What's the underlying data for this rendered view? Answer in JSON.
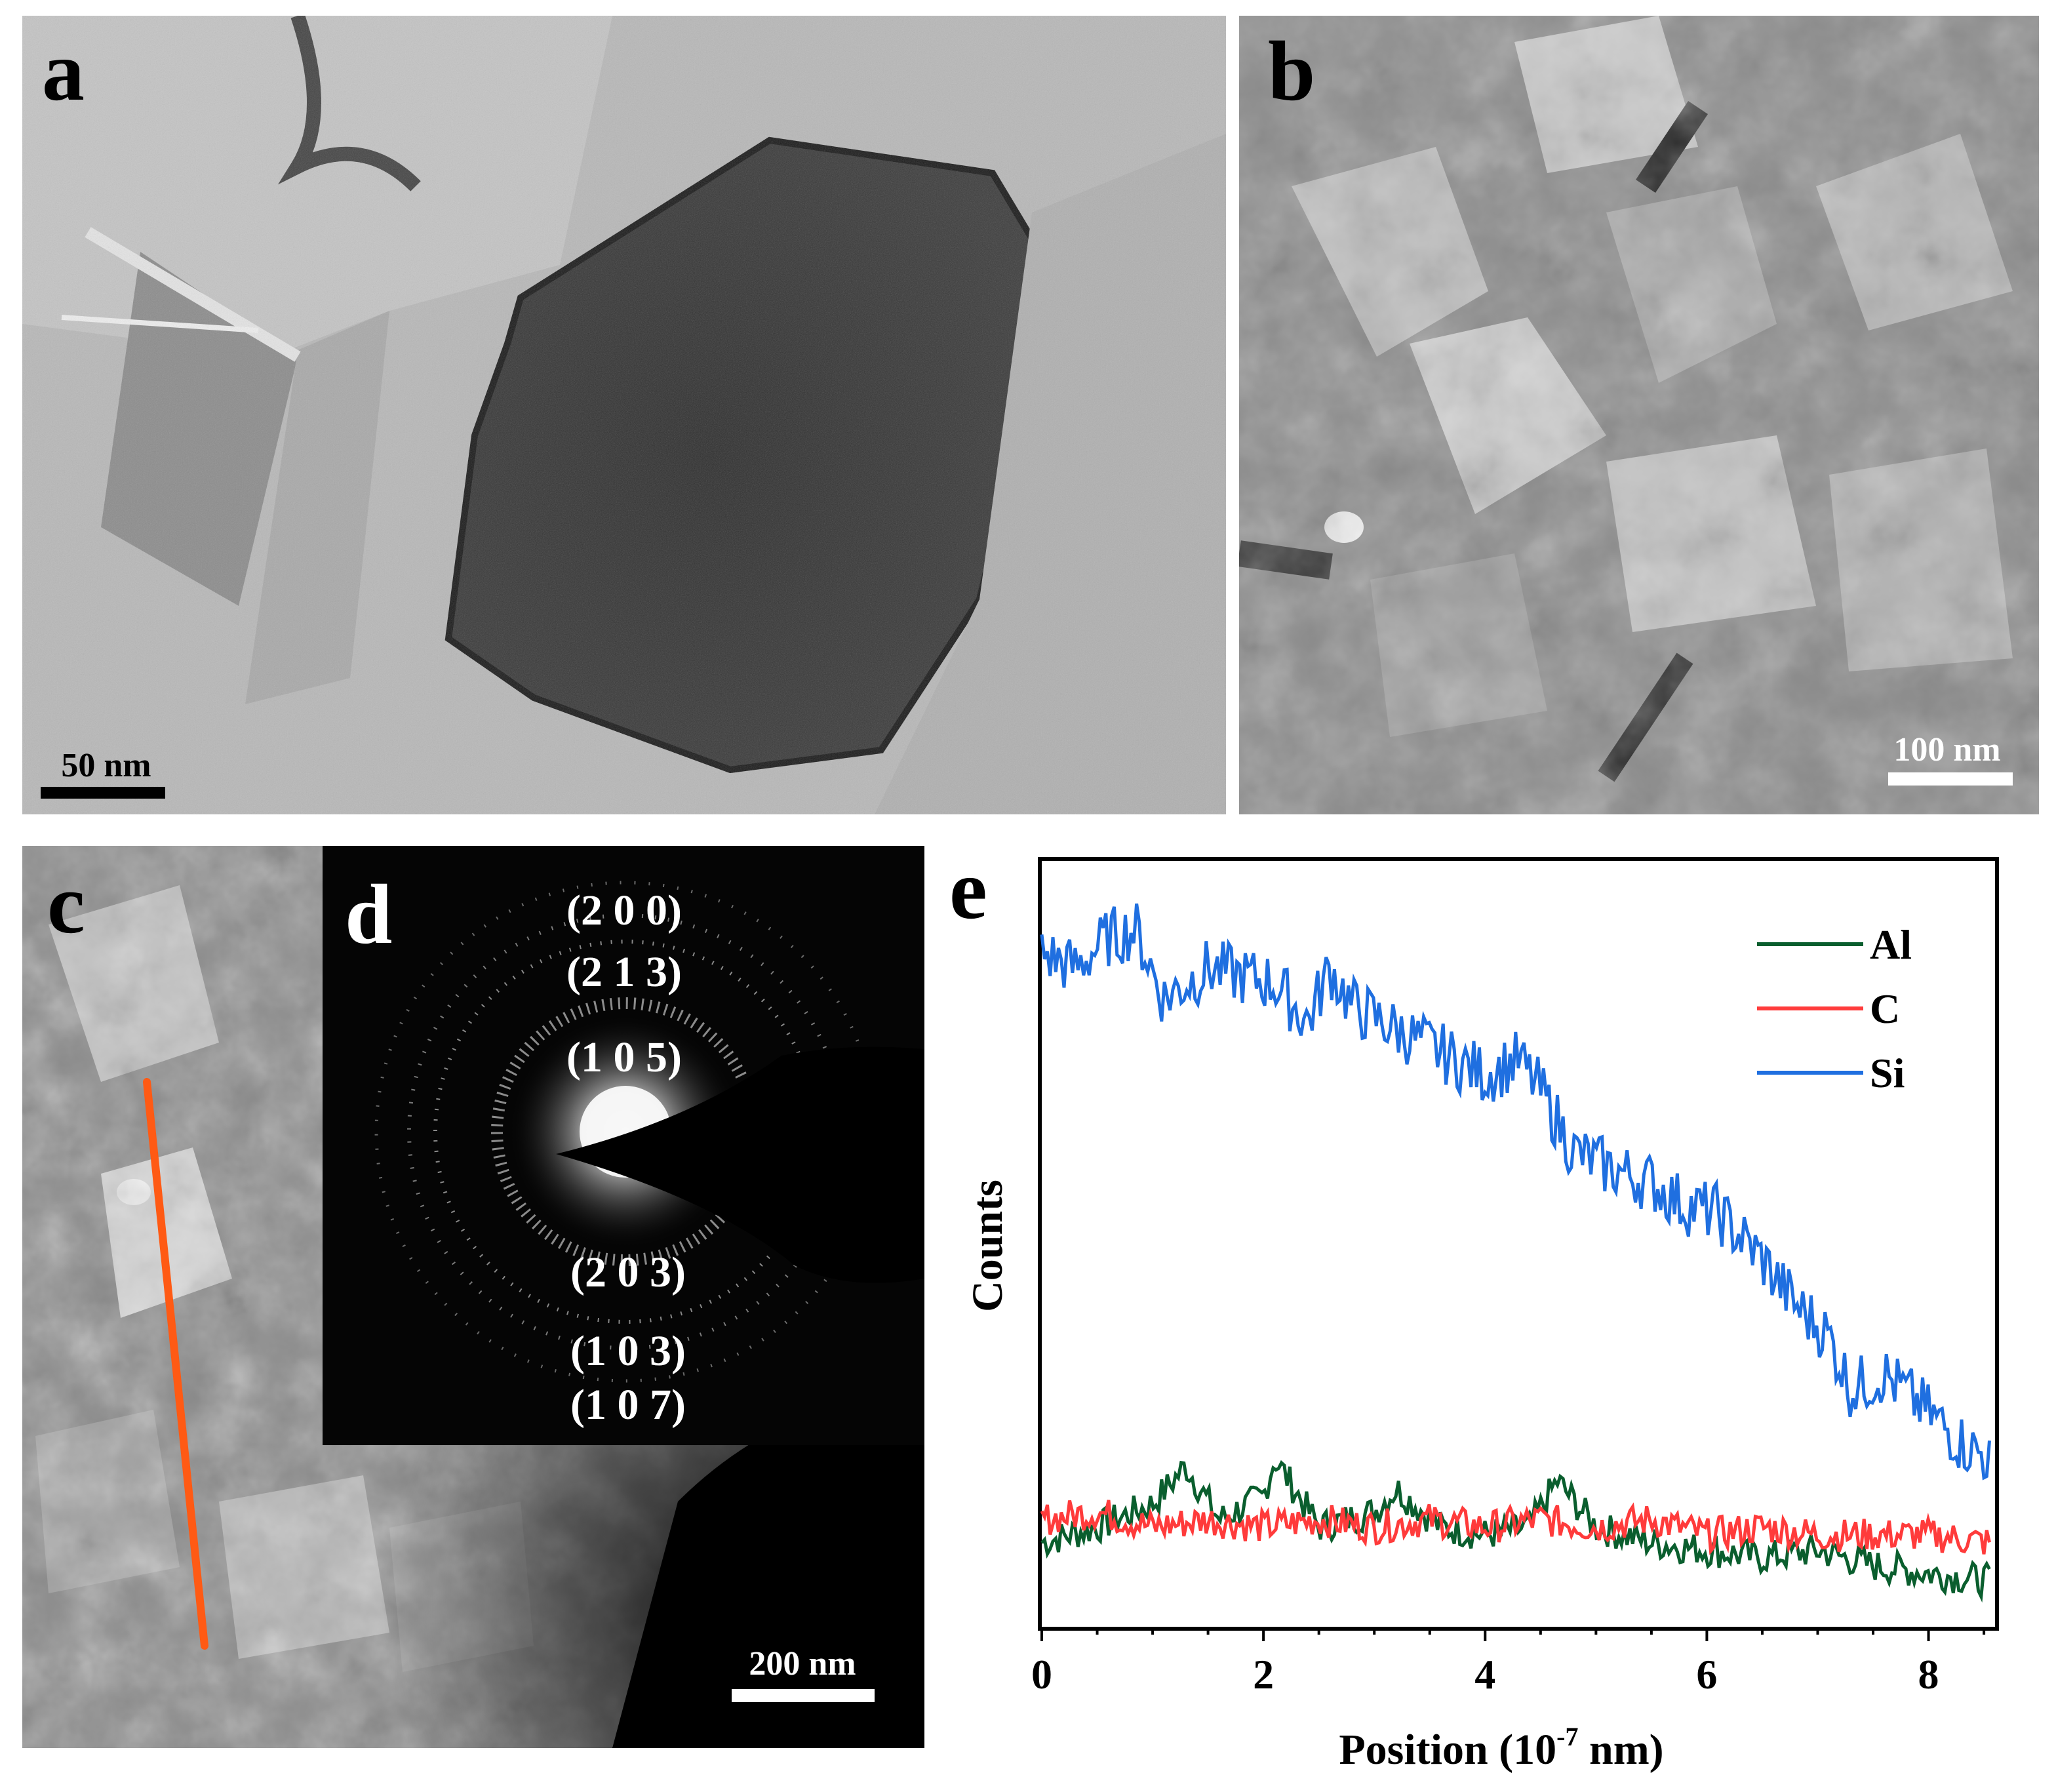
{
  "panels": {
    "a": {
      "label": "a",
      "scale_bar": "50 nm",
      "description": "bright-field TEM micrograph"
    },
    "b": {
      "label": "b",
      "scale_bar": "100 nm"
    },
    "c": {
      "label": "c",
      "scale_bar": "200 nm"
    },
    "d": {
      "label": "d",
      "rings": [
        "(2 0 0)",
        "(2 1 3)",
        "(1 0 5)",
        "(2 0 3)",
        "(1 0 3)",
        "(1 0 7)"
      ]
    },
    "e": {
      "label": "e"
    }
  },
  "colors": {
    "Al": "#0a5e2e",
    "C": "#ff3b3b",
    "Si": "#1f6fe0",
    "line_scan": "#ff5a14"
  },
  "chart_data": {
    "type": "line",
    "xlabel_main": "Position (10",
    "xlabel_exp": "-7",
    "xlabel_tail": " nm)",
    "ylabel": "Counts",
    "xlim": [
      0,
      8.6
    ],
    "ylim": [
      0,
      100
    ],
    "xticks": [
      0,
      2,
      4,
      6,
      8
    ],
    "xtick_labels": [
      "0",
      "2",
      "4",
      "6",
      "8"
    ],
    "legend_position": "top-right",
    "series": [
      {
        "name": "Al",
        "x": [
          0,
          0.5,
          1.0,
          1.3,
          1.6,
          2.0,
          2.1,
          2.5,
          3.0,
          3.2,
          3.6,
          4.0,
          4.4,
          4.65,
          5.0,
          5.5,
          6.0,
          6.5,
          7.0,
          7.5,
          8.0,
          8.55
        ],
        "y": [
          11,
          13,
          16,
          21,
          14,
          17,
          22,
          13,
          15,
          18,
          13,
          12,
          13,
          19,
          13,
          11,
          10,
          9,
          10,
          8,
          7,
          6
        ]
      },
      {
        "name": "C",
        "x": [
          0,
          0.5,
          1.0,
          1.5,
          2.0,
          2.5,
          3.0,
          3.5,
          4.0,
          4.5,
          5.0,
          5.5,
          6.0,
          6.5,
          7.0,
          7.5,
          8.0,
          8.55
        ],
        "y": [
          14,
          15,
          13,
          14,
          13,
          14,
          13,
          14,
          13,
          14,
          13,
          14,
          12,
          13,
          12,
          12,
          12,
          11
        ]
      },
      {
        "name": "Si",
        "x": [
          0,
          0.3,
          0.6,
          0.85,
          1.1,
          1.5,
          1.8,
          2.1,
          2.4,
          2.6,
          2.8,
          3.2,
          3.6,
          4.0,
          4.3,
          4.5,
          4.8,
          5.1,
          5.5,
          5.8,
          6.1,
          6.5,
          6.8,
          7.1,
          7.3,
          7.6,
          8.0,
          8.3,
          8.55
        ],
        "y": [
          88,
          86,
          90,
          91,
          82,
          86,
          85,
          84,
          79,
          86,
          81,
          78,
          75,
          72,
          74,
          70,
          62,
          60,
          58,
          55,
          54,
          48,
          42,
          38,
          31,
          33,
          28,
          24,
          22
        ]
      }
    ]
  }
}
